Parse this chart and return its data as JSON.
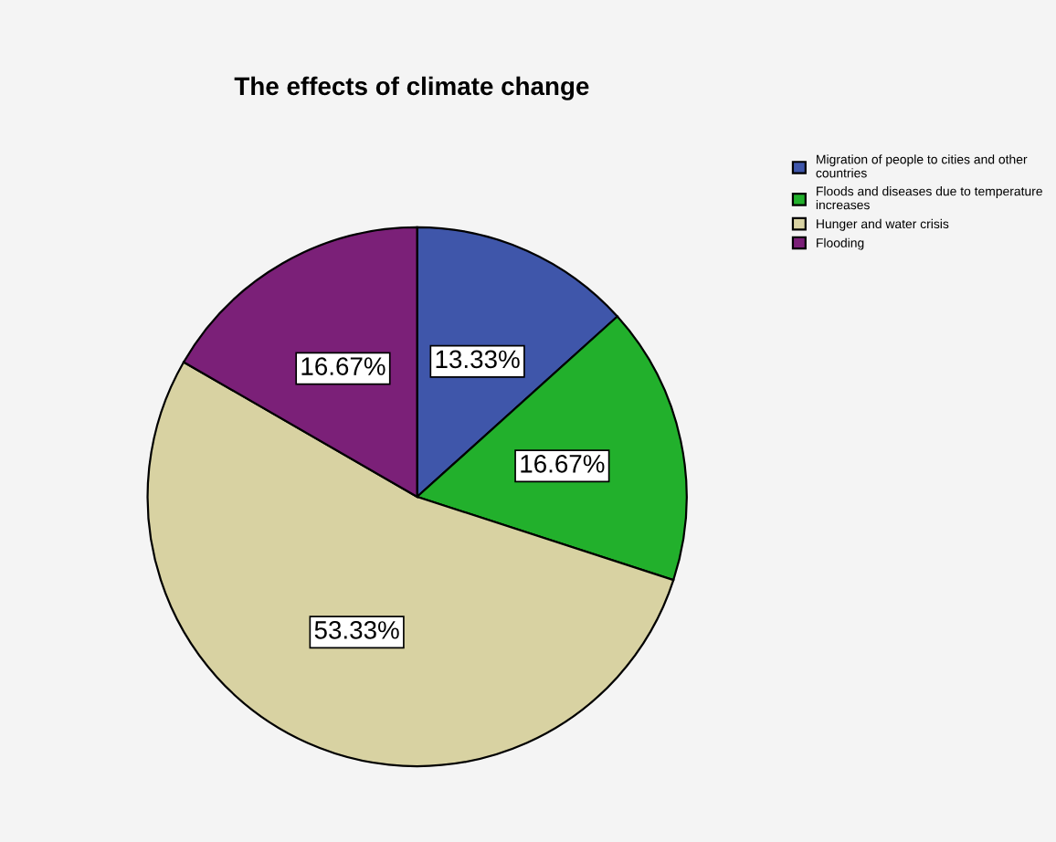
{
  "chart_data": {
    "type": "pie",
    "title": "The effects of climate change",
    "categories": [
      "Migration of people to cities and other\ncountries",
      "Floods and diseases due to temperature\nincreases",
      "Hunger and water crisis",
      "Flooding"
    ],
    "values": [
      13.33,
      16.67,
      53.33,
      16.67
    ],
    "colors": [
      "#3f56aa",
      "#22b02c",
      "#d8d2a2",
      "#7b2078"
    ],
    "value_labels": [
      "13.33%",
      "16.67%",
      "53.33%",
      "16.67%"
    ],
    "legend": "top right"
  }
}
